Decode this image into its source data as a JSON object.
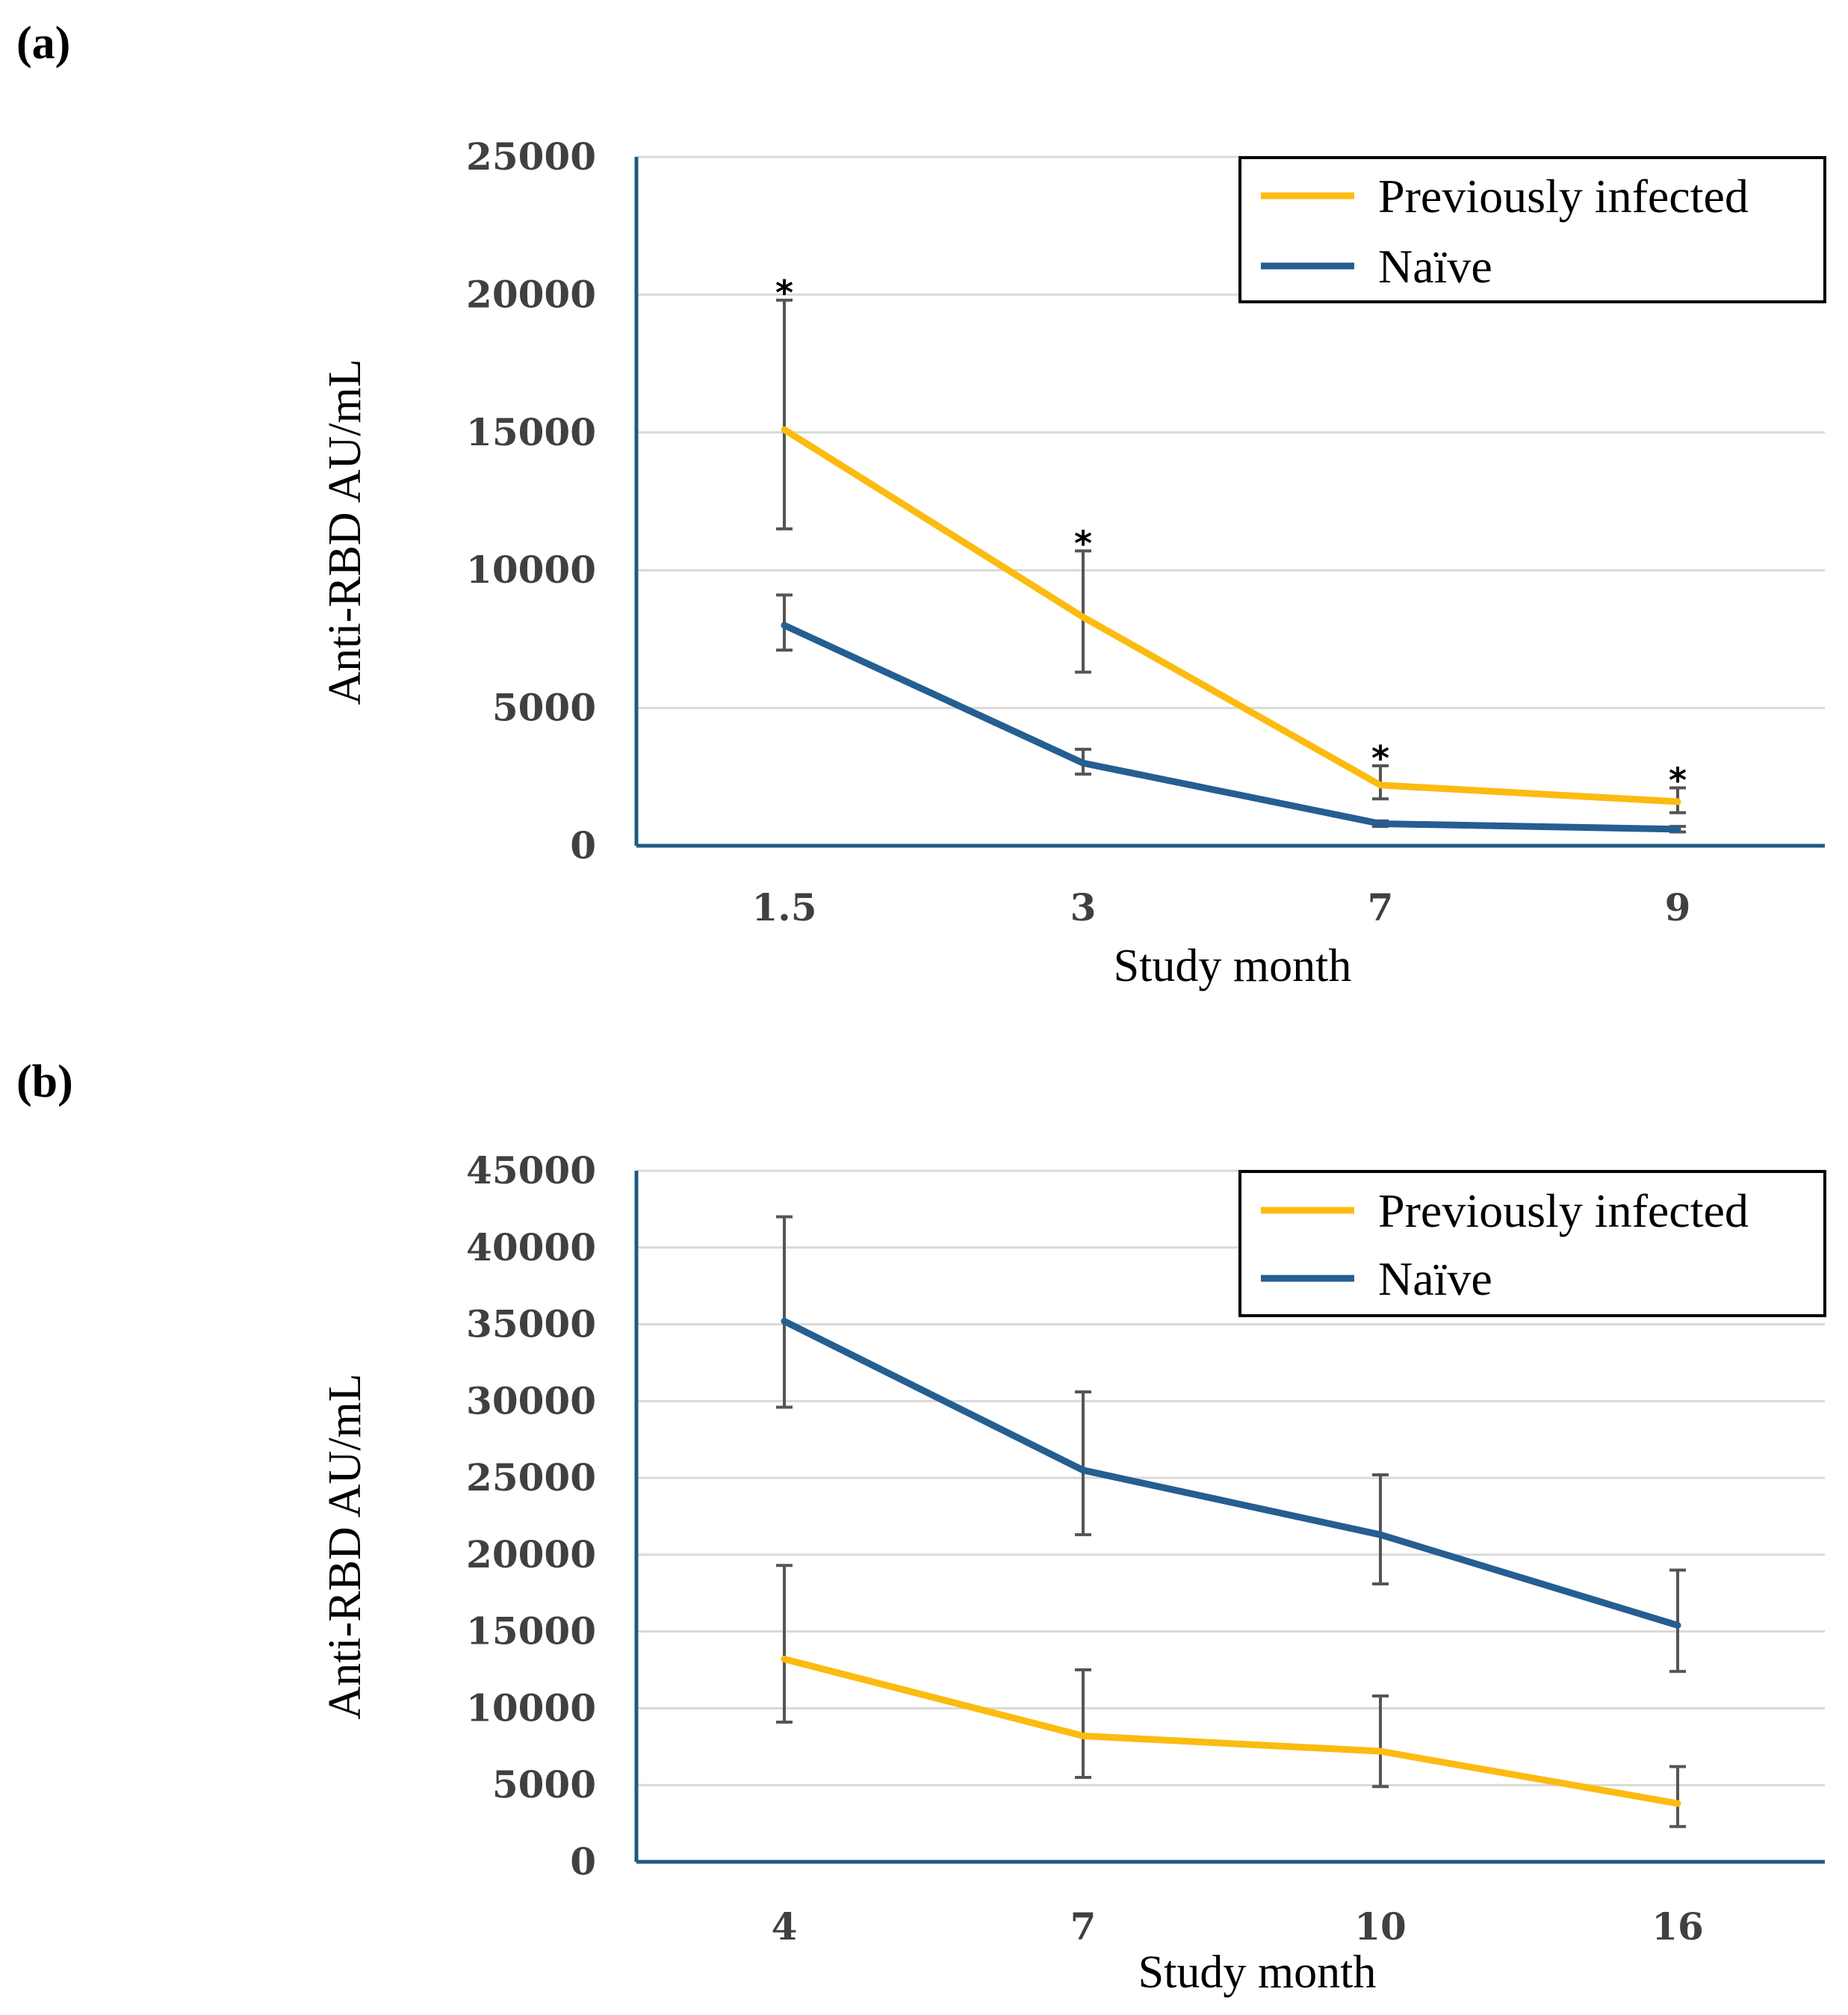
{
  "colors": {
    "previously_infected": "#fbbb10",
    "naive": "#255e91"
  },
  "chart_data": [
    {
      "type": "line",
      "panel": "(a)",
      "xlabel": "Study month",
      "ylabel": "Anti-RBD AU/mL",
      "categories": [
        "1.5",
        "3",
        "7",
        "9"
      ],
      "ylim": [
        0,
        25000
      ],
      "yticks": [
        "0",
        "5000",
        "10000",
        "15000",
        "20000",
        "25000"
      ],
      "legend": [
        "Previously infected",
        "Naïve"
      ],
      "legend_position": "top-right",
      "significance": [
        "*",
        "*",
        "*",
        "*"
      ],
      "series": [
        {
          "name": "Previously infected",
          "values": [
            15100,
            8300,
            2200,
            1600
          ],
          "err_low": [
            11500,
            6300,
            1700,
            1200
          ],
          "err_high": [
            19800,
            10700,
            2900,
            2100
          ]
        },
        {
          "name": "Naïve",
          "values": [
            8000,
            3000,
            800,
            600
          ],
          "err_low": [
            7100,
            2600,
            700,
            500
          ],
          "err_high": [
            9100,
            3500,
            900,
            700
          ]
        }
      ]
    },
    {
      "type": "line",
      "panel": "(b)",
      "xlabel": "Study month",
      "ylabel": "Anti-RBD AU/mL",
      "categories": [
        "4",
        "7",
        "10",
        "16"
      ],
      "ylim": [
        0,
        45000
      ],
      "yticks": [
        "0",
        "5000",
        "10000",
        "15000",
        "20000",
        "25000",
        "30000",
        "35000",
        "40000",
        "45000"
      ],
      "legend": [
        "Previously infected",
        "Naïve"
      ],
      "legend_position": "top-right",
      "significance": [],
      "series": [
        {
          "name": "Previously infected",
          "values": [
            13200,
            8200,
            7200,
            3800
          ],
          "err_low": [
            9100,
            5500,
            4900,
            2300
          ],
          "err_high": [
            19300,
            12500,
            10800,
            6200
          ]
        },
        {
          "name": "Naïve",
          "values": [
            35200,
            25500,
            21300,
            15400
          ],
          "err_low": [
            29600,
            21300,
            18100,
            12400
          ],
          "err_high": [
            42000,
            30600,
            25200,
            19000
          ]
        }
      ]
    }
  ]
}
